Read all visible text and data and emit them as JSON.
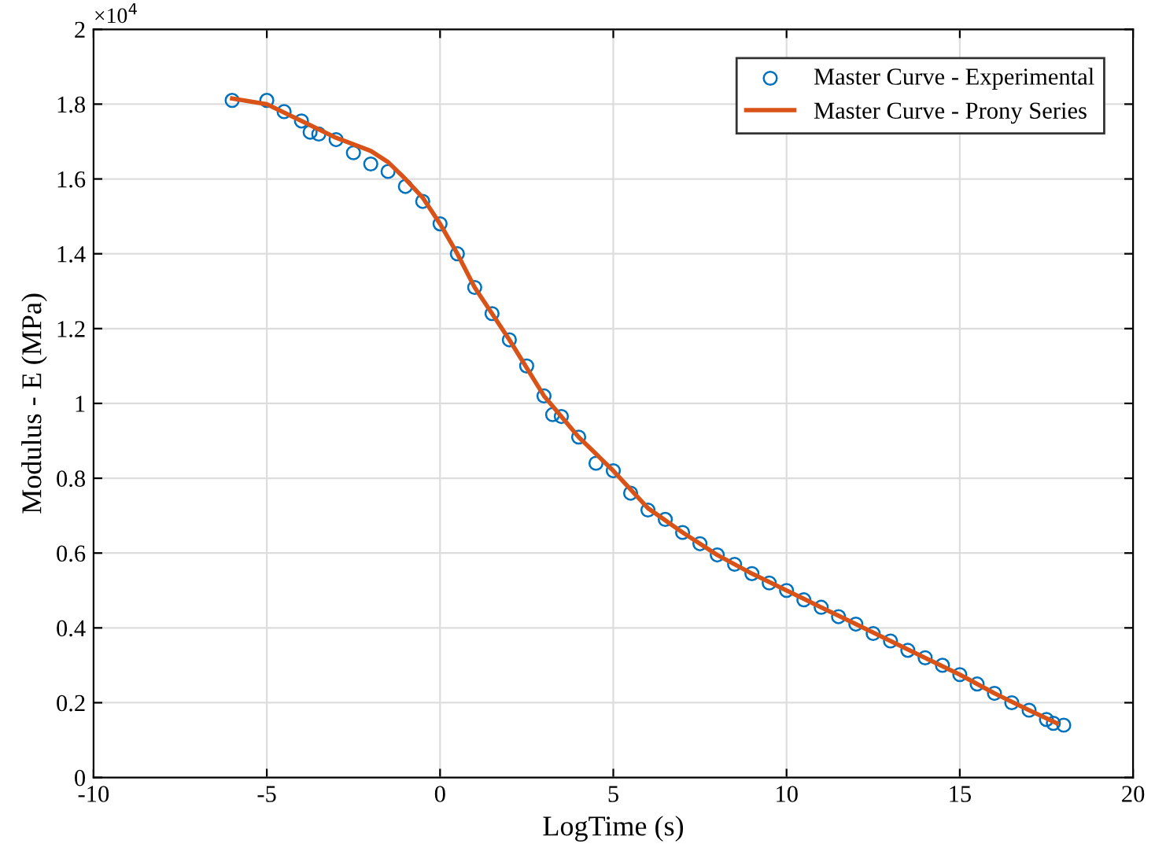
{
  "chart_data": {
    "type": "scatter",
    "xlabel": "LogTime (s)",
    "ylabel": "Modulus - E (MPa)",
    "annotations": [
      "×10$^{4}$"
    ],
    "xlim": [
      -10,
      20
    ],
    "xticks": [
      -10,
      -5,
      0,
      5,
      10,
      15,
      20
    ],
    "ylim": [
      0,
      2
    ],
    "yticks": [
      0,
      0.2,
      0.4,
      0.6,
      0.8,
      1,
      1.2,
      1.4,
      1.6,
      1.8,
      2
    ],
    "grid": true,
    "legend": "top right",
    "series": [
      {
        "name": "Master Curve - Experimental",
        "marker": "circle",
        "color": "#0072bd",
        "x": [
          -6,
          -5,
          -4.5,
          -4,
          -3.75,
          -3.5,
          -3,
          -2.5,
          -2,
          -1.5,
          -1,
          -0.5,
          0,
          0.5,
          1,
          1.5,
          2,
          2.5,
          3,
          3.25,
          3.5,
          4,
          4.5,
          5,
          5.5,
          6,
          6.5,
          7,
          7.5,
          8,
          8.5,
          9,
          9.5,
          10,
          10.5,
          11,
          11.5,
          12,
          12.5,
          13,
          13.5,
          14,
          14.5,
          15,
          15.5,
          16,
          16.5,
          17,
          17.5,
          17.7,
          18
        ],
        "values": [
          1.81,
          1.81,
          1.78,
          1.755,
          1.725,
          1.72,
          1.705,
          1.67,
          1.64,
          1.62,
          1.58,
          1.54,
          1.48,
          1.4,
          1.31,
          1.24,
          1.17,
          1.1,
          1.02,
          0.97,
          0.965,
          0.91,
          0.84,
          0.82,
          0.76,
          0.715,
          0.69,
          0.655,
          0.625,
          0.595,
          0.57,
          0.545,
          0.52,
          0.5,
          0.475,
          0.455,
          0.43,
          0.41,
          0.385,
          0.365,
          0.34,
          0.32,
          0.3,
          0.275,
          0.25,
          0.225,
          0.2,
          0.18,
          0.155,
          0.145,
          0.14
        ]
      },
      {
        "name": "Master Curve - Prony Series",
        "type": "line",
        "line_style": "solid",
        "color": "#d95319",
        "x": [
          -6,
          -5,
          -4,
          -3,
          -2,
          -1.5,
          -1,
          -0.5,
          0,
          0.5,
          1,
          2,
          3,
          4,
          5,
          6,
          7,
          8,
          9,
          10,
          11,
          12,
          13,
          14,
          15,
          16,
          17,
          17.8
        ],
        "values": [
          1.815,
          1.8,
          1.755,
          1.71,
          1.675,
          1.645,
          1.6,
          1.55,
          1.48,
          1.4,
          1.31,
          1.17,
          1.02,
          0.91,
          0.82,
          0.72,
          0.655,
          0.595,
          0.545,
          0.5,
          0.455,
          0.41,
          0.365,
          0.32,
          0.275,
          0.225,
          0.18,
          0.145
        ]
      }
    ]
  }
}
